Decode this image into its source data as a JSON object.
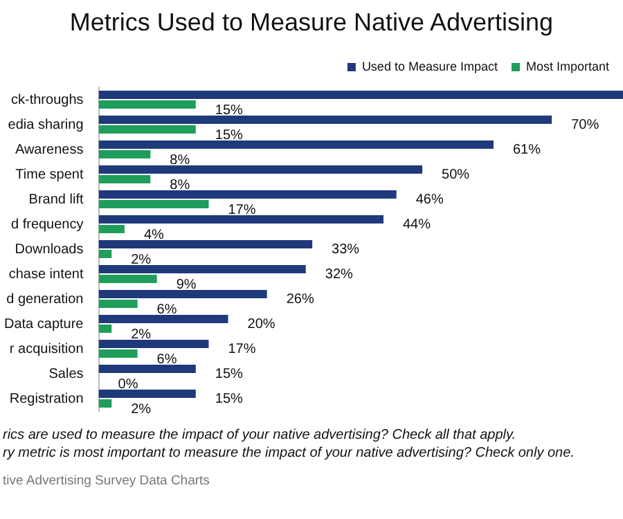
{
  "chart_data": {
    "type": "bar",
    "orientation": "horizontal",
    "title": "Metrics Used to Measure Native Advertising",
    "categories": [
      "ck-throughs",
      "edia sharing",
      "Awareness",
      "Time spent",
      "Brand lift",
      "d frequency",
      "Downloads",
      "chase intent",
      "d generation",
      "Data capture",
      "r acquisition",
      "Sales",
      "Registration"
    ],
    "series": [
      {
        "name": "Used to Measure Impact",
        "color": "#1f3a7a",
        "values": [
          81,
          70,
          61,
          50,
          46,
          44,
          33,
          32,
          26,
          20,
          17,
          15,
          15
        ],
        "value_labels": [
          null,
          "70%",
          "61%",
          "50%",
          "46%",
          "44%",
          "33%",
          "32%",
          "26%",
          "20%",
          "17%",
          "15%",
          "15%"
        ]
      },
      {
        "name": "Most Important",
        "color": "#1e9e5a",
        "values": [
          15,
          15,
          8,
          8,
          17,
          4,
          2,
          9,
          6,
          2,
          6,
          0,
          2
        ],
        "value_labels": [
          "15%",
          "15%",
          "8%",
          "8%",
          "17%",
          "4%",
          "2%",
          "9%",
          "6%",
          "2%",
          "6%",
          "0%",
          "2%"
        ]
      }
    ],
    "legend": "top right",
    "grid": false,
    "tick_labels": "y",
    "annotations": [
      "rics are used to measure the impact of your native advertising? Check all that apply.",
      "ry metric is most important to measure the impact of your native advertising? Check only one.",
      "tive Advertising Survey Data Charts"
    ]
  }
}
